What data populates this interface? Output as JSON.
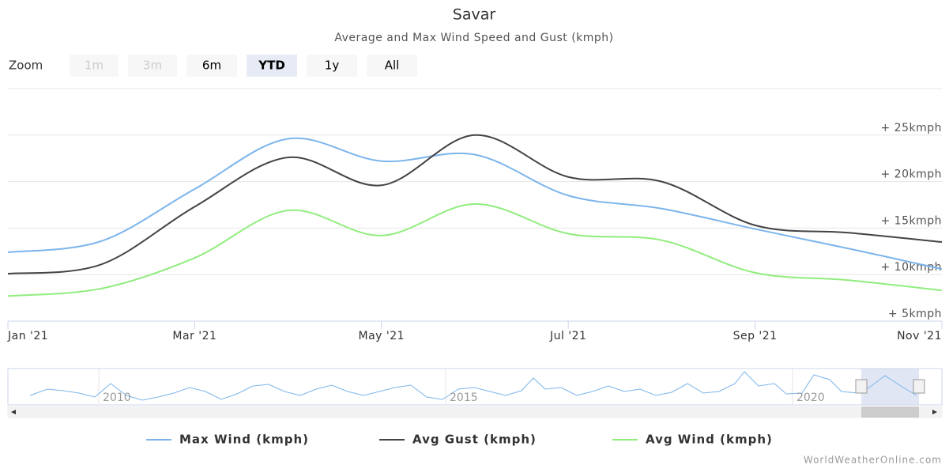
{
  "chart_data": {
    "type": "line",
    "title": "Savar",
    "subtitle": "Average and Max Wind Speed and Gust (kmph)",
    "range_selector": {
      "label": "Zoom",
      "buttons": [
        "1m",
        "3m",
        "6m",
        "YTD",
        "1y",
        "All"
      ],
      "selected": "YTD",
      "disabled": [
        "1m",
        "3m"
      ]
    },
    "categories": [
      "Jan '21",
      null,
      "Mar '21",
      null,
      "May '21",
      null,
      "Jul '21",
      null,
      "Sep '21",
      null,
      "Nov '21"
    ],
    "series": [
      {
        "name": "Max Wind (kmph)",
        "color": "#7cb5ec",
        "values": [
          12.4,
          13.6,
          19.2,
          24.6,
          22.2,
          22.9,
          18.5,
          17.1,
          14.9,
          12.8,
          10.6
        ]
      },
      {
        "name": "Avg Gust (kmph)",
        "color": "#434348",
        "values": [
          10.1,
          11.1,
          17.3,
          22.6,
          19.6,
          25.0,
          20.5,
          20.0,
          15.3,
          14.5,
          13.5
        ]
      },
      {
        "name": "Avg Wind (kmph)",
        "color": "#90ed7d",
        "values": [
          7.7,
          8.5,
          11.8,
          16.9,
          14.2,
          17.6,
          14.4,
          13.7,
          10.2,
          9.4,
          8.3
        ]
      }
    ],
    "ylim": [
      5,
      30
    ],
    "yticks": [
      {
        "value": 5,
        "label": "+ 5kmph"
      },
      {
        "value": 10,
        "label": "+ 10kmph"
      },
      {
        "value": 15,
        "label": "+ 15kmph"
      },
      {
        "value": 20,
        "label": "+ 20kmph"
      },
      {
        "value": 25,
        "label": "+ 25kmph"
      }
    ],
    "grid": true,
    "legend": "bottom",
    "navigator_labels": [
      "2010",
      "2015",
      "2020"
    ],
    "credit": "WorldWeatherOnline.com"
  }
}
